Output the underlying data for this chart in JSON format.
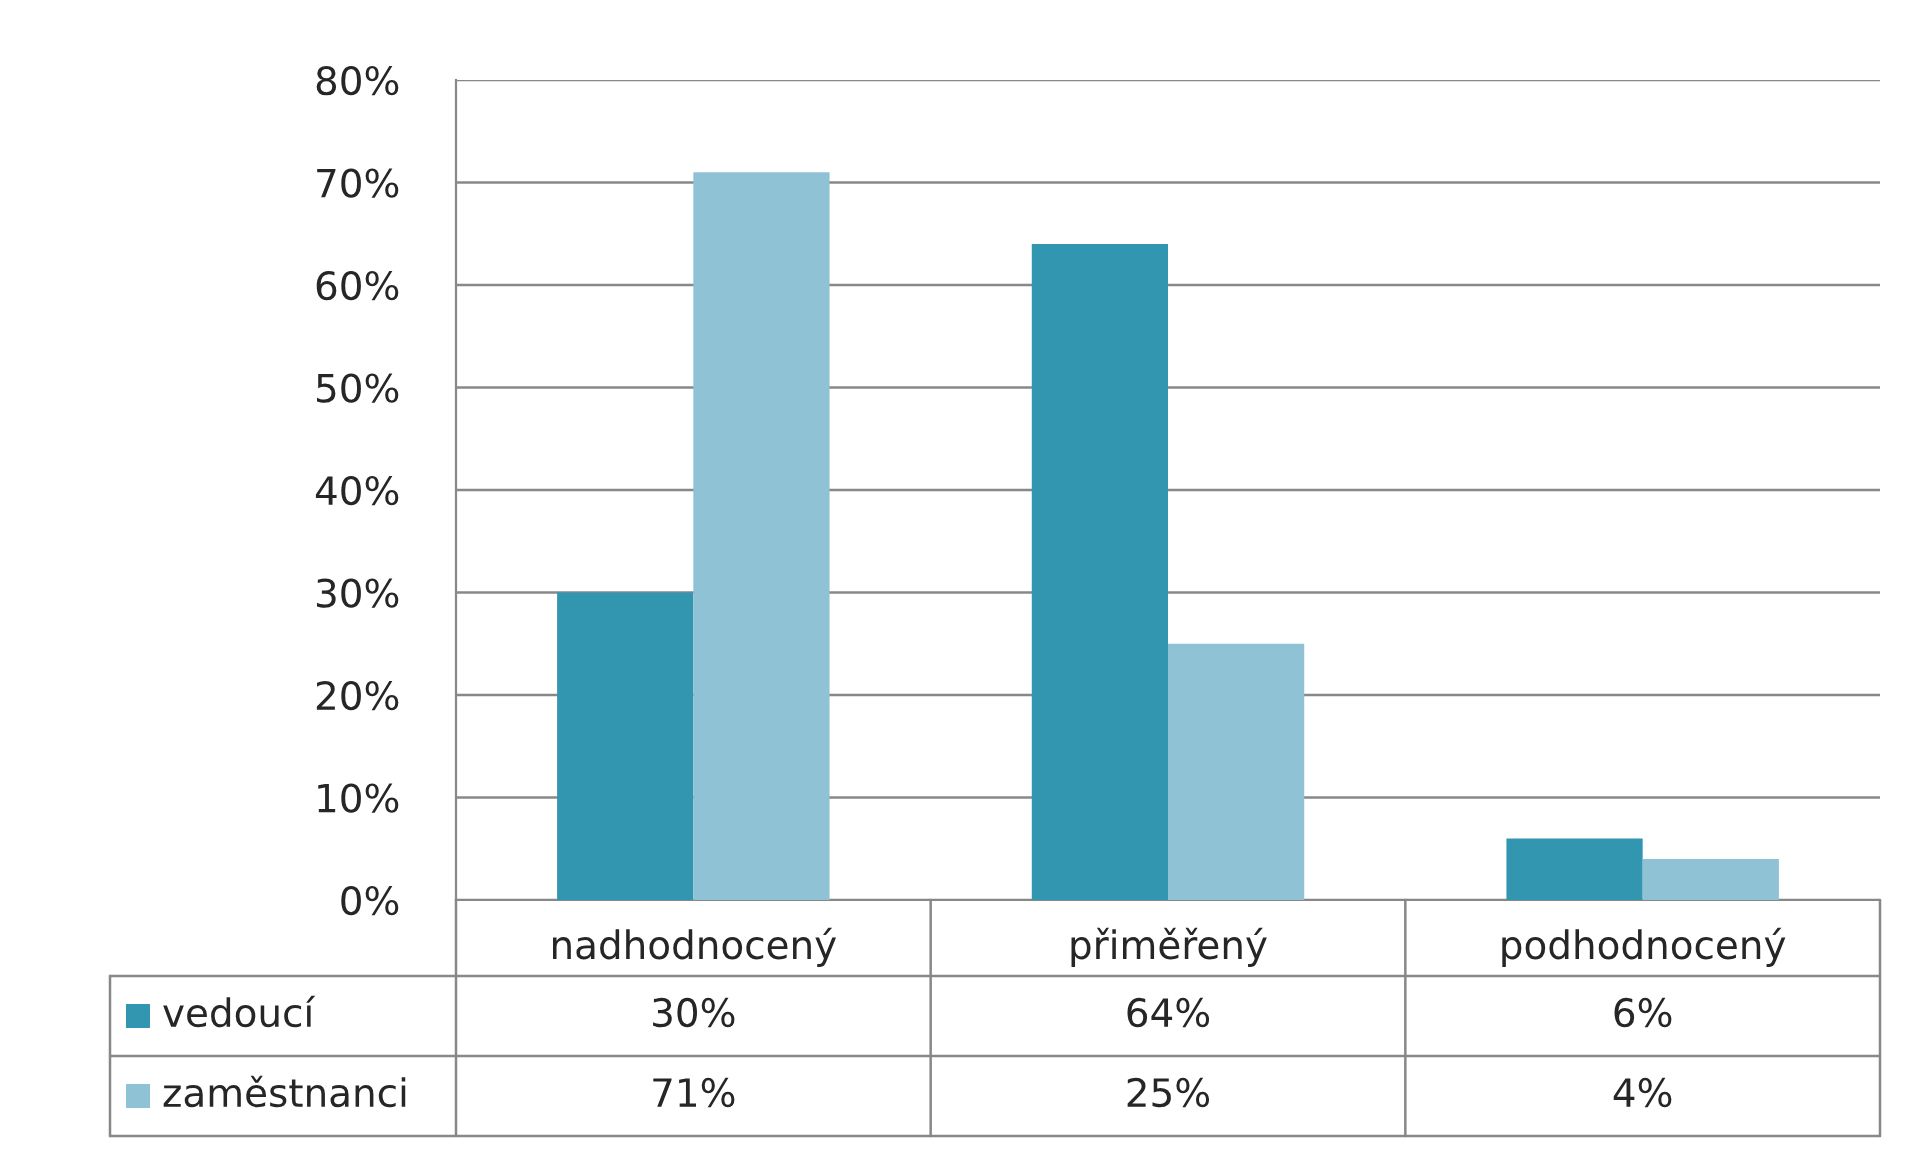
{
  "chart_data": {
    "type": "bar",
    "categories": [
      "nadhodnocený",
      "přiměřený",
      "podhodnocený"
    ],
    "series": [
      {
        "name": "vedoucí",
        "color": "#3396b0",
        "values": [
          30,
          64,
          6
        ],
        "value_labels": [
          "30%",
          "64%",
          "6%"
        ]
      },
      {
        "name": "zaměstnanci",
        "color": "#8fc2d4",
        "values": [
          71,
          25,
          4
        ],
        "value_labels": [
          "71%",
          "25%",
          "4%"
        ]
      }
    ],
    "ylim": [
      0,
      80
    ],
    "yticks": [
      {
        "value": 0,
        "label": "0%"
      },
      {
        "value": 10,
        "label": "10%"
      },
      {
        "value": 20,
        "label": "20%"
      },
      {
        "value": 30,
        "label": "30%"
      },
      {
        "value": 40,
        "label": "40%"
      },
      {
        "value": 50,
        "label": "50%"
      },
      {
        "value": 60,
        "label": "60%"
      },
      {
        "value": 70,
        "label": "70%"
      },
      {
        "value": 80,
        "label": "80%"
      }
    ],
    "grid": "y",
    "legend": "bottom"
  }
}
